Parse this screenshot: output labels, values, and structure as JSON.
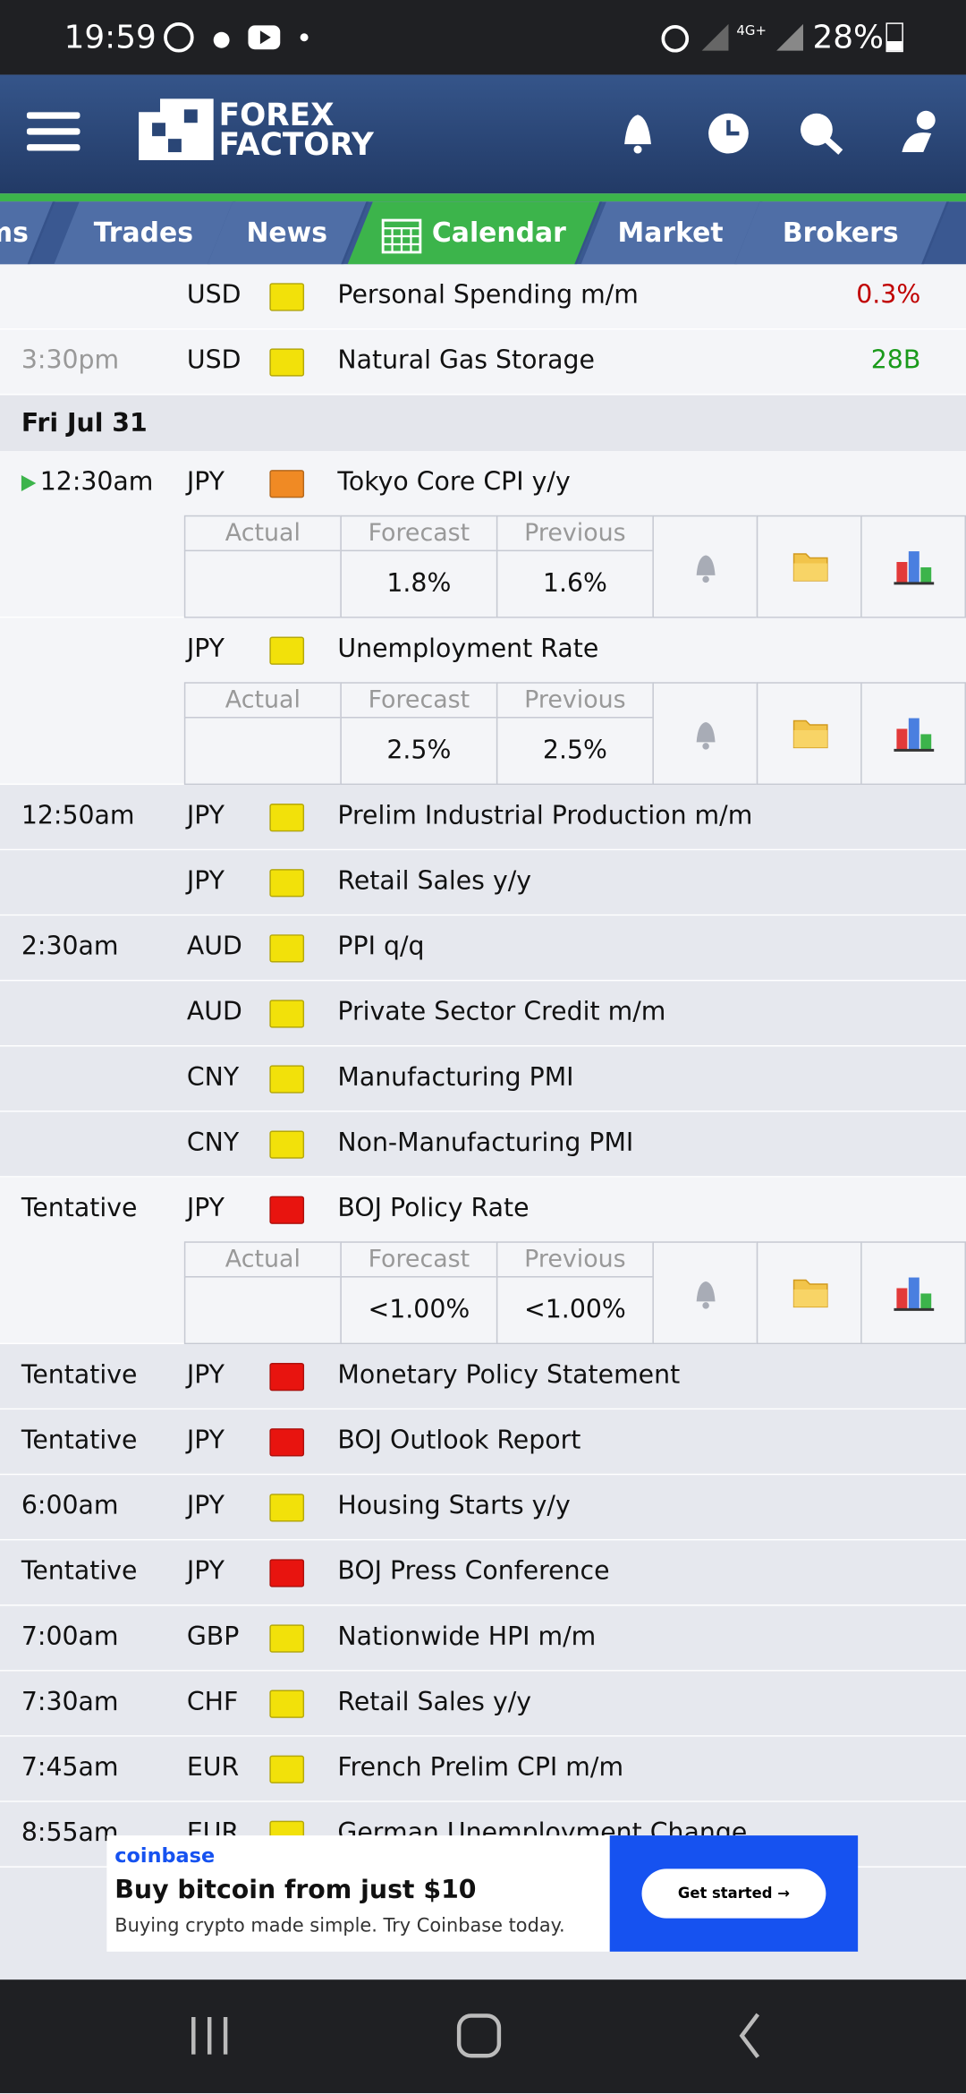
{
  "status_bar": {
    "time": "19:59",
    "network": "4G+",
    "battery": "28%"
  },
  "header": {
    "logo_line1": "FOREX",
    "logo_line2": "FACTORY"
  },
  "tabs": [
    "ms",
    "Trades",
    "News",
    "Calendar",
    "Market",
    "Brokers"
  ],
  "calendar": {
    "detail_headers": [
      "Actual",
      "Forecast",
      "Previous"
    ],
    "rows": [
      {
        "currency": "USD",
        "impact": "#f2e10a",
        "event": "Personal Spending m/m",
        "actual": "0.3%",
        "actual_color": "#c00000"
      },
      {
        "time": "3:30pm",
        "currency": "USD",
        "impact": "#f2e10a",
        "event": "Natural Gas Storage",
        "actual": "28B",
        "actual_color": "#1a9a1a"
      },
      {
        "day": "Fri Jul 31"
      },
      {
        "time": "12:30am",
        "currency": "JPY",
        "impact": "#f08a24",
        "event": "Tokyo Core CPI y/y",
        "forecast": "1.8%",
        "previous": "1.6%"
      },
      {
        "currency": "JPY",
        "impact": "#f2e10a",
        "event": "Unemployment Rate",
        "forecast": "2.5%",
        "previous": "2.5%"
      },
      {
        "time": "12:50am",
        "currency": "JPY",
        "impact": "#f2e10a",
        "event": "Prelim Industrial Production m/m"
      },
      {
        "currency": "JPY",
        "impact": "#f2e10a",
        "event": "Retail Sales y/y"
      },
      {
        "time": "2:30am",
        "currency": "AUD",
        "impact": "#f2e10a",
        "event": "PPI q/q"
      },
      {
        "currency": "AUD",
        "impact": "#f2e10a",
        "event": "Private Sector Credit m/m"
      },
      {
        "currency": "CNY",
        "impact": "#f2e10a",
        "event": "Manufacturing PMI"
      },
      {
        "currency": "CNY",
        "impact": "#f2e10a",
        "event": "Non-Manufacturing PMI"
      },
      {
        "time": "Tentative",
        "currency": "JPY",
        "impact": "#e8140f",
        "event": "BOJ Policy Rate",
        "forecast": "<1.00%",
        "previous": "<1.00%"
      },
      {
        "time": "Tentative",
        "currency": "JPY",
        "impact": "#e8140f",
        "event": "Monetary Policy Statement"
      },
      {
        "time": "Tentative",
        "currency": "JPY",
        "impact": "#e8140f",
        "event": "BOJ Outlook Report"
      },
      {
        "time": "6:00am",
        "currency": "JPY",
        "impact": "#f2e10a",
        "event": "Housing Starts y/y"
      },
      {
        "time": "Tentative",
        "currency": "JPY",
        "impact": "#e8140f",
        "event": "BOJ Press Conference"
      },
      {
        "time": "7:00am",
        "currency": "GBP",
        "impact": "#f2e10a",
        "event": "Nationwide HPI m/m"
      },
      {
        "time": "7:30am",
        "currency": "CHF",
        "impact": "#f2e10a",
        "event": "Retail Sales y/y"
      },
      {
        "time": "7:45am",
        "currency": "EUR",
        "impact": "#f2e10a",
        "event": "French Prelim CPI m/m"
      },
      {
        "time": "8:55am",
        "currency": "EUR",
        "impact": "#f2e10a",
        "event": "German Unemployment Change"
      }
    ]
  },
  "ad": {
    "brand": "coinbase",
    "headline": "Buy bitcoin from just $10",
    "text": "Buying crypto made simple. Try Coinbase today.",
    "button": "Get started →"
  }
}
